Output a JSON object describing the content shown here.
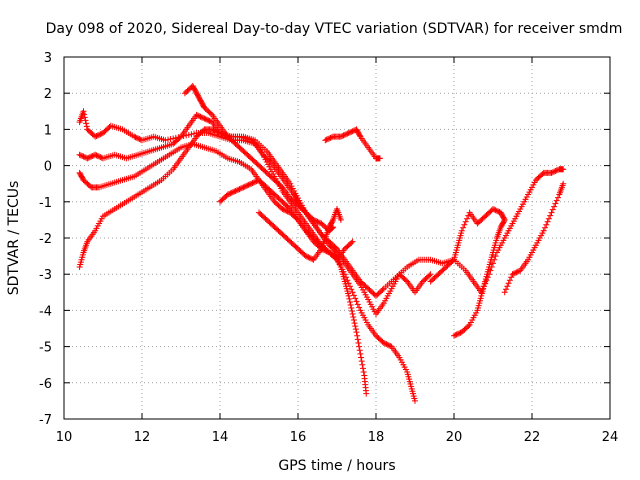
{
  "chart_data": {
    "type": "scatter",
    "title": "Day 098 of 2020, Sidereal Day-to-day VTEC variation (SDTVAR) for receiver smdm",
    "xlabel": "GPS time / hours",
    "ylabel": "SDTVAR / TECUs",
    "xlim": [
      10,
      24
    ],
    "ylim": [
      -7,
      3
    ],
    "xticks": [
      "10",
      "12",
      "14",
      "16",
      "18",
      "20",
      "22",
      "24"
    ],
    "yticks": [
      "3",
      "2",
      "1",
      "0",
      "-1",
      "-2",
      "-3",
      "-4",
      "-5",
      "-6",
      "-7"
    ],
    "grid": true,
    "marker": "plus",
    "color": "#ff0000",
    "series": [
      {
        "values": [
          [
            10.4,
            1.2
          ],
          [
            10.5,
            1.5
          ],
          [
            10.6,
            1.0
          ],
          [
            10.8,
            0.8
          ],
          [
            11.0,
            0.9
          ],
          [
            11.2,
            1.1
          ],
          [
            11.5,
            1.0
          ],
          [
            11.8,
            0.8
          ],
          [
            12.0,
            0.7
          ],
          [
            12.3,
            0.8
          ],
          [
            12.6,
            0.7
          ],
          [
            13.0,
            0.8
          ],
          [
            13.4,
            0.9
          ],
          [
            13.7,
            0.9
          ],
          [
            14.0,
            0.8
          ],
          [
            14.3,
            0.7
          ],
          [
            14.6,
            0.7
          ],
          [
            14.9,
            0.6
          ],
          [
            15.1,
            0.3
          ],
          [
            15.3,
            0.1
          ],
          [
            15.5,
            -0.2
          ],
          [
            15.7,
            -0.5
          ],
          [
            15.9,
            -0.8
          ],
          [
            16.0,
            -1.0
          ],
          [
            16.2,
            -1.3
          ],
          [
            16.4,
            -1.6
          ],
          [
            16.6,
            -1.9
          ],
          [
            16.8,
            -2.2
          ],
          [
            17.0,
            -2.4
          ],
          [
            17.2,
            -2.7
          ],
          [
            17.4,
            -3.0
          ],
          [
            17.6,
            -3.3
          ],
          [
            17.8,
            -3.7
          ],
          [
            18.0,
            -4.1
          ],
          [
            18.2,
            -3.8
          ],
          [
            18.4,
            -3.4
          ],
          [
            18.6,
            -3.0
          ],
          [
            18.8,
            -3.2
          ],
          [
            19.0,
            -3.5
          ],
          [
            19.2,
            -3.2
          ],
          [
            19.4,
            -3.0
          ]
        ]
      },
      {
        "values": [
          [
            10.4,
            0.3
          ],
          [
            10.6,
            0.2
          ],
          [
            10.8,
            0.3
          ],
          [
            11.0,
            0.2
          ],
          [
            11.3,
            0.3
          ],
          [
            11.6,
            0.2
          ],
          [
            11.9,
            0.3
          ],
          [
            12.2,
            0.4
          ],
          [
            12.5,
            0.5
          ],
          [
            12.8,
            0.6
          ],
          [
            13.0,
            0.8
          ],
          [
            13.2,
            1.1
          ],
          [
            13.4,
            1.4
          ],
          [
            13.6,
            1.3
          ],
          [
            13.8,
            1.2
          ],
          [
            14.0,
            0.9
          ],
          [
            14.3,
            0.8
          ],
          [
            14.6,
            0.8
          ],
          [
            14.9,
            0.7
          ],
          [
            15.2,
            0.4
          ],
          [
            15.4,
            0.1
          ],
          [
            15.6,
            -0.2
          ],
          [
            15.8,
            -0.5
          ],
          [
            16.0,
            -0.9
          ],
          [
            16.2,
            -1.3
          ],
          [
            16.4,
            -1.6
          ],
          [
            16.6,
            -1.9
          ],
          [
            16.8,
            -2.1
          ],
          [
            17.0,
            -2.3
          ],
          [
            17.2,
            -2.6
          ],
          [
            17.4,
            -2.9
          ],
          [
            17.6,
            -3.2
          ],
          [
            17.8,
            -3.4
          ],
          [
            18.0,
            -3.6
          ],
          [
            18.2,
            -3.4
          ],
          [
            18.5,
            -3.1
          ],
          [
            18.8,
            -2.8
          ],
          [
            19.1,
            -2.6
          ],
          [
            19.4,
            -2.6
          ],
          [
            19.7,
            -2.7
          ],
          [
            20.0,
            -2.6
          ],
          [
            20.3,
            -2.9
          ],
          [
            20.5,
            -3.2
          ],
          [
            20.7,
            -3.5
          ],
          [
            20.9,
            -3.0
          ],
          [
            21.1,
            -2.4
          ],
          [
            21.3,
            -2.0
          ],
          [
            21.5,
            -1.6
          ],
          [
            21.7,
            -1.2
          ],
          [
            21.9,
            -0.8
          ],
          [
            22.1,
            -0.4
          ],
          [
            22.3,
            -0.2
          ],
          [
            22.5,
            -0.2
          ],
          [
            22.7,
            -0.1
          ],
          [
            22.8,
            -0.1
          ]
        ]
      },
      {
        "values": [
          [
            10.4,
            -0.2
          ],
          [
            10.5,
            -0.4
          ],
          [
            10.7,
            -0.6
          ],
          [
            10.9,
            -0.6
          ],
          [
            11.2,
            -0.5
          ],
          [
            11.5,
            -0.4
          ],
          [
            11.8,
            -0.3
          ],
          [
            12.1,
            -0.1
          ],
          [
            12.4,
            0.1
          ],
          [
            12.7,
            0.3
          ],
          [
            13.0,
            0.5
          ],
          [
            13.3,
            0.6
          ],
          [
            13.6,
            0.5
          ],
          [
            13.9,
            0.4
          ],
          [
            14.2,
            0.2
          ],
          [
            14.5,
            0.1
          ],
          [
            14.8,
            -0.1
          ],
          [
            15.0,
            -0.4
          ],
          [
            15.2,
            -0.7
          ],
          [
            15.4,
            -1.0
          ],
          [
            15.6,
            -1.2
          ],
          [
            15.8,
            -1.3
          ],
          [
            16.0,
            -1.5
          ],
          [
            16.2,
            -1.8
          ],
          [
            16.4,
            -2.1
          ],
          [
            16.6,
            -2.3
          ],
          [
            16.8,
            -2.4
          ],
          [
            17.0,
            -2.5
          ],
          [
            17.1,
            -2.8
          ],
          [
            17.2,
            -3.2
          ],
          [
            17.3,
            -3.6
          ],
          [
            17.4,
            -4.1
          ],
          [
            17.5,
            -4.6
          ],
          [
            17.6,
            -5.2
          ],
          [
            17.7,
            -5.8
          ],
          [
            17.75,
            -6.3
          ]
        ]
      },
      {
        "values": [
          [
            10.4,
            -2.8
          ],
          [
            10.5,
            -2.4
          ],
          [
            10.6,
            -2.1
          ],
          [
            10.8,
            -1.8
          ],
          [
            11.0,
            -1.4
          ],
          [
            11.3,
            -1.2
          ],
          [
            11.6,
            -1.0
          ],
          [
            11.9,
            -0.8
          ],
          [
            12.2,
            -0.6
          ],
          [
            12.5,
            -0.4
          ],
          [
            12.8,
            -0.1
          ],
          [
            13.0,
            0.2
          ],
          [
            13.2,
            0.5
          ],
          [
            13.4,
            0.8
          ],
          [
            13.6,
            1.0
          ],
          [
            13.8,
            1.0
          ],
          [
            14.0,
            0.9
          ],
          [
            14.2,
            0.8
          ],
          [
            14.5,
            0.8
          ],
          [
            14.8,
            0.7
          ],
          [
            15.0,
            0.5
          ],
          [
            15.2,
            0.1
          ],
          [
            15.4,
            -0.3
          ],
          [
            15.6,
            -0.7
          ],
          [
            15.8,
            -1.0
          ],
          [
            16.0,
            -1.3
          ],
          [
            16.2,
            -1.6
          ],
          [
            16.4,
            -1.9
          ],
          [
            16.6,
            -2.2
          ],
          [
            16.8,
            -2.4
          ],
          [
            17.0,
            -2.6
          ],
          [
            17.2,
            -3.0
          ],
          [
            17.4,
            -3.5
          ],
          [
            17.6,
            -4.0
          ],
          [
            17.8,
            -4.4
          ],
          [
            18.0,
            -4.7
          ],
          [
            18.2,
            -4.9
          ],
          [
            18.4,
            -5.0
          ],
          [
            18.6,
            -5.3
          ],
          [
            18.8,
            -5.7
          ],
          [
            18.9,
            -6.1
          ],
          [
            19.0,
            -6.5
          ]
        ]
      },
      {
        "values": [
          [
            13.1,
            2.0
          ],
          [
            13.3,
            2.2
          ],
          [
            13.4,
            2.0
          ],
          [
            13.5,
            1.8
          ],
          [
            13.6,
            1.6
          ],
          [
            13.8,
            1.4
          ],
          [
            14.0,
            1.1
          ],
          [
            14.2,
            0.8
          ],
          [
            14.4,
            0.6
          ],
          [
            14.6,
            0.4
          ],
          [
            14.8,
            0.2
          ],
          [
            15.0,
            0.0
          ],
          [
            15.2,
            -0.2
          ],
          [
            15.4,
            -0.4
          ],
          [
            15.6,
            -0.6
          ],
          [
            15.8,
            -0.9
          ],
          [
            16.0,
            -1.1
          ],
          [
            16.2,
            -1.3
          ],
          [
            16.4,
            -1.5
          ],
          [
            16.6,
            -1.6
          ],
          [
            16.8,
            -1.8
          ],
          [
            16.9,
            -1.7
          ]
        ]
      },
      {
        "values": [
          [
            14.0,
            -1.0
          ],
          [
            14.2,
            -0.8
          ],
          [
            14.4,
            -0.7
          ],
          [
            14.6,
            -0.6
          ],
          [
            14.8,
            -0.5
          ],
          [
            15.0,
            -0.4
          ],
          [
            15.2,
            -0.6
          ],
          [
            15.4,
            -0.8
          ],
          [
            15.6,
            -1.0
          ],
          [
            15.8,
            -1.2
          ],
          [
            16.0,
            -1.5
          ],
          [
            16.2,
            -1.8
          ],
          [
            16.4,
            -2.0
          ],
          [
            16.6,
            -2.2
          ],
          [
            16.8,
            -2.4
          ],
          [
            17.0,
            -2.6
          ],
          [
            17.2,
            -2.3
          ],
          [
            17.4,
            -2.1
          ]
        ]
      },
      {
        "values": [
          [
            15.0,
            -1.3
          ],
          [
            15.2,
            -1.5
          ],
          [
            15.4,
            -1.7
          ],
          [
            15.6,
            -1.9
          ],
          [
            15.8,
            -2.1
          ],
          [
            16.0,
            -2.3
          ],
          [
            16.2,
            -2.5
          ],
          [
            16.4,
            -2.6
          ],
          [
            16.6,
            -2.3
          ],
          [
            16.7,
            -2.0
          ],
          [
            16.8,
            -1.7
          ],
          [
            16.9,
            -1.5
          ],
          [
            17.0,
            -1.2
          ],
          [
            17.1,
            -1.5
          ]
        ]
      },
      {
        "values": [
          [
            16.7,
            0.7
          ],
          [
            16.9,
            0.8
          ],
          [
            17.1,
            0.8
          ],
          [
            17.3,
            0.9
          ],
          [
            17.5,
            1.0
          ],
          [
            17.6,
            0.8
          ],
          [
            17.8,
            0.5
          ],
          [
            18.0,
            0.2
          ],
          [
            18.1,
            0.2
          ]
        ]
      },
      {
        "values": [
          [
            20.0,
            -4.7
          ],
          [
            20.2,
            -4.6
          ],
          [
            20.4,
            -4.4
          ],
          [
            20.6,
            -4.0
          ],
          [
            20.7,
            -3.6
          ],
          [
            20.8,
            -3.2
          ],
          [
            20.9,
            -2.8
          ],
          [
            21.0,
            -2.4
          ],
          [
            21.1,
            -2.0
          ],
          [
            21.2,
            -1.7
          ],
          [
            21.3,
            -1.5
          ],
          [
            21.2,
            -1.3
          ],
          [
            21.0,
            -1.2
          ],
          [
            20.8,
            -1.4
          ],
          [
            20.6,
            -1.6
          ],
          [
            20.4,
            -1.3
          ],
          [
            20.2,
            -1.8
          ],
          [
            20.1,
            -2.2
          ],
          [
            20.0,
            -2.6
          ],
          [
            19.8,
            -2.8
          ],
          [
            19.6,
            -3.0
          ],
          [
            19.4,
            -3.2
          ]
        ]
      },
      {
        "values": [
          [
            21.3,
            -3.5
          ],
          [
            21.5,
            -3.0
          ],
          [
            21.7,
            -2.9
          ],
          [
            21.9,
            -2.6
          ],
          [
            22.1,
            -2.2
          ],
          [
            22.3,
            -1.8
          ],
          [
            22.5,
            -1.3
          ],
          [
            22.7,
            -0.8
          ],
          [
            22.8,
            -0.5
          ]
        ]
      }
    ]
  }
}
